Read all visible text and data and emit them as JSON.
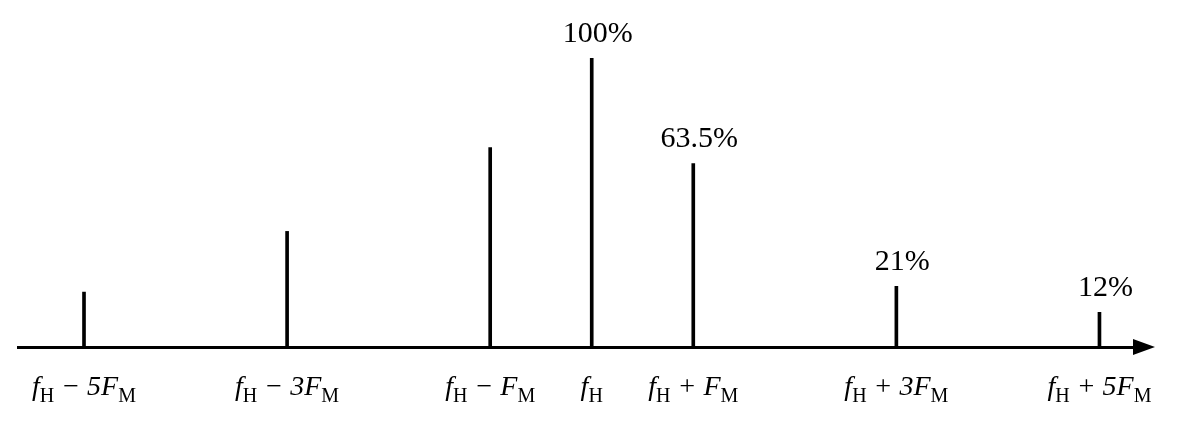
{
  "chart_data": {
    "type": "bar",
    "x": [
      -5,
      -3,
      -1,
      0,
      1,
      3,
      5
    ],
    "values": [
      19,
      40,
      69,
      100,
      63.5,
      21,
      12
    ],
    "value_labels": [
      null,
      null,
      null,
      "100%",
      "63.5%",
      "21%",
      "12%"
    ],
    "color": "#000000",
    "xlim": [
      -5.65,
      5.35
    ],
    "xticks": [
      {
        "value": -5,
        "label": "f$_{H}$ − 5F$_{M}$"
      },
      {
        "value": -3,
        "label": "f$_{H}$ − 3F$_{M}$"
      },
      {
        "value": -1,
        "label": "f$_{H}$ − F$_{M}$"
      },
      {
        "value": 0,
        "label": "f$_{H}$"
      },
      {
        "value": 1,
        "label": "f$_{H}$ + F$_{M}$"
      },
      {
        "value": 3,
        "label": "f$_{H}$ + 3F$_{M}$"
      },
      {
        "value": 5,
        "label": "f$_{H}$ + 5F$_{M}$"
      }
    ]
  }
}
